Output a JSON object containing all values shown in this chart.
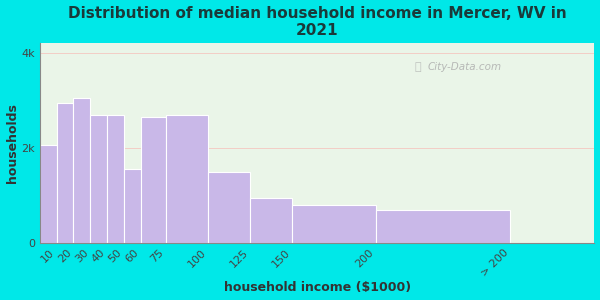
{
  "title": "Distribution of median household income in Mercer, WV in\n2021",
  "xlabel": "household income ($1000)",
  "ylabel": "households",
  "bar_left_edges": [
    0,
    10,
    20,
    30,
    40,
    50,
    60,
    75,
    100,
    125,
    150,
    200
  ],
  "bar_widths": [
    10,
    10,
    10,
    10,
    10,
    10,
    15,
    25,
    25,
    25,
    50,
    80
  ],
  "values": [
    2050,
    2950,
    3050,
    2700,
    2700,
    1550,
    2650,
    2700,
    1500,
    950,
    800,
    700
  ],
  "bar_color": "#c9b8e8",
  "bar_edge_color": "#ffffff",
  "background_outer": "#00e8e8",
  "background_inner": "#eaf5e8",
  "xtick_positions": [
    10,
    20,
    30,
    40,
    50,
    60,
    75,
    100,
    125,
    150,
    200,
    280
  ],
  "xtick_labels": [
    "10",
    "20",
    "30",
    "40",
    "50",
    "60",
    "75",
    "100",
    "125",
    "150",
    "200",
    "> 200"
  ],
  "yticks": [
    0,
    2000,
    4000
  ],
  "ytick_labels": [
    "0",
    "2k",
    "4k"
  ],
  "ylim": [
    0,
    4200
  ],
  "xlim": [
    0,
    330
  ],
  "watermark": "City-Data.com",
  "title_fontsize": 11,
  "title_color": "#1a3a3a",
  "axis_label_fontsize": 9,
  "tick_fontsize": 8,
  "tick_rotation": 45
}
